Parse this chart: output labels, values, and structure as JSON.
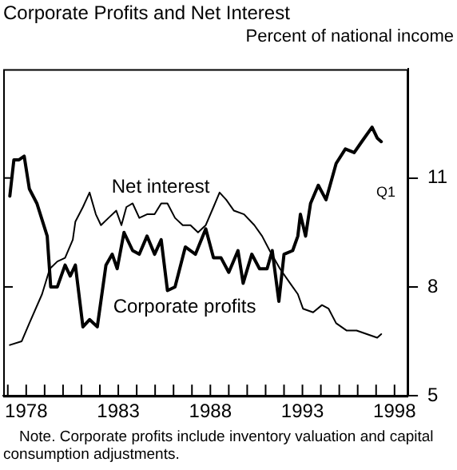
{
  "chart_data": {
    "type": "line",
    "title": "Corporate Profits and Net Interest",
    "ylabel": "Percent of national income",
    "annotations": [
      "Q1",
      "Note.  Corporate profits include inventory valuation and capital consumption adjustments."
    ],
    "series": [
      {
        "name": "Corporate profits",
        "color": "#000000",
        "x": [
          1977.11,
          1977.33,
          1977.61,
          1977.89,
          1978.17,
          1978.58,
          1979.14,
          1979.33,
          1979.69,
          1980.11,
          1980.39,
          1980.67,
          1981.08,
          1981.44,
          1981.86,
          1982.33,
          1982.67,
          1982.94,
          1983.31,
          1983.78,
          1984.14,
          1984.56,
          1984.97,
          1985.33,
          1985.67,
          1986.08,
          1986.64,
          1987.19,
          1987.75,
          1988.17,
          1988.58,
          1989.0,
          1989.5,
          1989.78,
          1990.25,
          1990.67,
          1991.08,
          1991.36,
          1991.72,
          1992.0,
          1992.47,
          1992.75,
          1992.89,
          1993.17,
          1993.44,
          1993.86,
          1994.28,
          1994.83,
          1995.33,
          1995.81,
          1996.22,
          1996.78,
          1997.06,
          1997.28
        ],
        "values": [
          10.5,
          11.5,
          11.5,
          11.6,
          10.7,
          10.3,
          9.4,
          8.0,
          8.0,
          8.6,
          8.3,
          8.6,
          6.9,
          7.1,
          6.9,
          8.6,
          8.9,
          8.5,
          9.5,
          9.0,
          8.9,
          9.4,
          8.9,
          9.3,
          7.9,
          8.0,
          9.1,
          8.9,
          9.6,
          8.8,
          8.8,
          8.4,
          9.0,
          8.1,
          8.9,
          8.5,
          8.5,
          9.0,
          7.6,
          8.9,
          9.0,
          9.4,
          10.0,
          9.4,
          10.3,
          10.8,
          10.4,
          11.4,
          11.8,
          11.7,
          12.0,
          12.4,
          12.1,
          12.0
        ]
      },
      {
        "name": "Net interest",
        "color": "#000000",
        "x": [
          1977.11,
          1977.75,
          1978.17,
          1978.86,
          1979.28,
          1979.69,
          1980.11,
          1980.53,
          1980.67,
          1981.08,
          1981.44,
          1981.78,
          1982.06,
          1982.47,
          1982.89,
          1983.17,
          1983.44,
          1983.78,
          1984.14,
          1984.56,
          1984.97,
          1985.33,
          1985.67,
          1986.08,
          1986.5,
          1986.92,
          1987.33,
          1987.75,
          1988.17,
          1988.5,
          1988.86,
          1989.28,
          1989.83,
          1990.39,
          1990.81,
          1991.22,
          1991.78,
          1992.33,
          1992.75,
          1993.03,
          1993.58,
          1994.06,
          1994.42,
          1994.83,
          1995.39,
          1995.94,
          1996.5,
          1997.06,
          1997.28
        ],
        "values": [
          6.4,
          6.5,
          7.0,
          7.8,
          8.5,
          8.7,
          8.8,
          9.3,
          9.8,
          10.2,
          10.6,
          10.0,
          9.7,
          9.9,
          10.1,
          9.7,
          10.2,
          10.3,
          9.9,
          10.0,
          10.0,
          10.3,
          10.3,
          9.9,
          9.7,
          9.7,
          9.5,
          9.7,
          10.2,
          10.6,
          10.4,
          10.1,
          10.0,
          9.7,
          9.4,
          9.0,
          8.5,
          8.1,
          7.8,
          7.4,
          7.3,
          7.5,
          7.4,
          7.0,
          6.8,
          6.8,
          6.7,
          6.6,
          6.7
        ]
      }
    ],
    "xlim": [
      1976.75,
      1998.75
    ],
    "xticks": [
      {
        "value": 1977,
        "label": null
      },
      1978,
      {
        "value": 1979,
        "label": null
      },
      {
        "value": 1980,
        "label": null
      },
      {
        "value": 1981,
        "label": null
      },
      {
        "value": 1982,
        "label": null
      },
      1983,
      {
        "value": 1984,
        "label": null
      },
      {
        "value": 1985,
        "label": null
      },
      {
        "value": 1986,
        "label": null
      },
      {
        "value": 1987,
        "label": null
      },
      1988,
      {
        "value": 1989,
        "label": null
      },
      {
        "value": 1990,
        "label": null
      },
      {
        "value": 1991,
        "label": null
      },
      {
        "value": 1992,
        "label": null
      },
      1993,
      {
        "value": 1994,
        "label": null
      },
      {
        "value": 1995,
        "label": null
      },
      {
        "value": 1996,
        "label": null
      },
      {
        "value": 1997,
        "label": null
      },
      1998
    ],
    "ylim": [
      5,
      14
    ],
    "yticks": [
      5,
      8,
      11
    ],
    "grid": false,
    "legend": false,
    "marker": "none",
    "line_style": "solid"
  }
}
